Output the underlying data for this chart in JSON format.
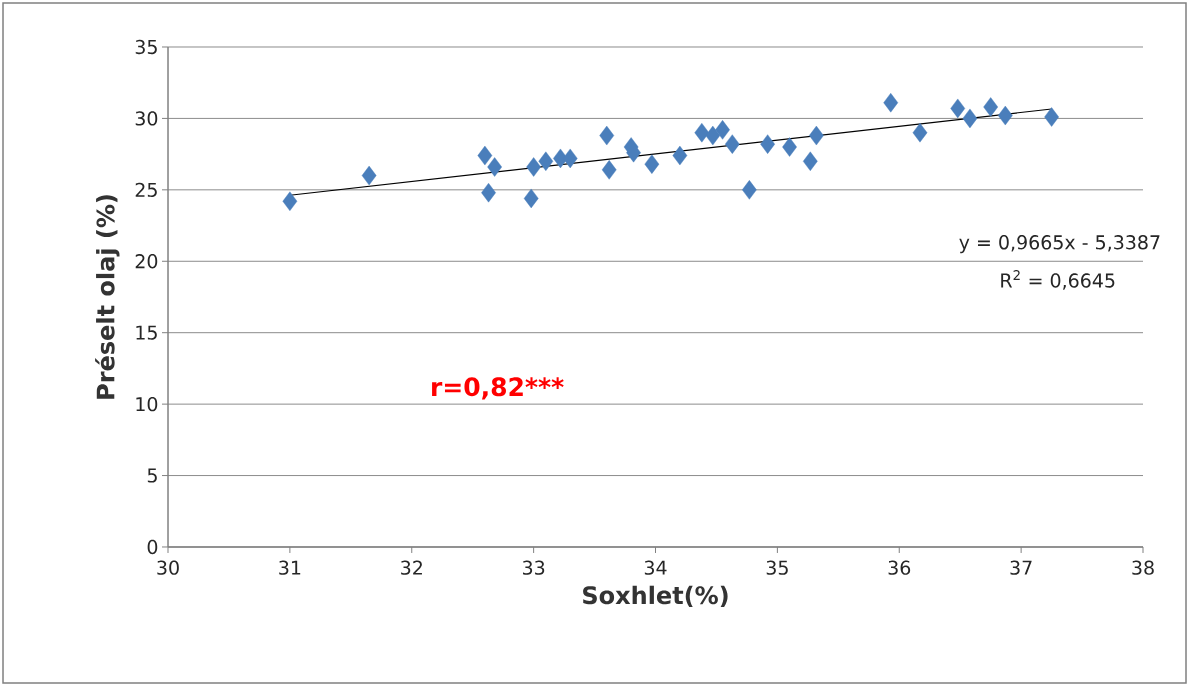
{
  "chart_data": {
    "type": "scatter",
    "xlabel": "Soxhlet(%)",
    "ylabel": "Préselt olaj (%)",
    "xlim": [
      30,
      38
    ],
    "xticks": [
      30,
      31,
      32,
      33,
      34,
      35,
      36,
      37,
      38
    ],
    "ylim": [
      0,
      35
    ],
    "yticks": [
      0,
      5,
      10,
      15,
      20,
      25,
      30,
      35
    ],
    "grid": "y",
    "series": [
      {
        "color": "#4a7ebb",
        "marker": "diamond",
        "x": [
          31.0,
          31.65,
          32.6,
          32.63,
          32.68,
          32.98,
          33.0,
          33.1,
          33.22,
          33.3,
          33.6,
          33.62,
          33.8,
          33.82,
          33.97,
          34.2,
          34.38,
          34.47,
          34.55,
          34.63,
          34.77,
          34.92,
          35.1,
          35.27,
          35.32,
          35.93,
          36.17,
          36.48,
          36.58,
          36.75,
          36.87,
          37.25
        ],
        "values": [
          24.2,
          26.0,
          27.4,
          24.8,
          26.6,
          24.4,
          26.6,
          27.0,
          27.2,
          27.2,
          28.8,
          26.4,
          28.0,
          27.6,
          26.8,
          27.4,
          29.0,
          28.8,
          29.2,
          28.2,
          25.0,
          28.2,
          28.0,
          27.0,
          28.8,
          31.1,
          29.0,
          30.7,
          30.0,
          30.8,
          30.2,
          30.1
        ]
      },
      {
        "type": "line",
        "color": "#000000",
        "marker": "none",
        "line_style": "solid",
        "x": [
          31.0,
          37.25
        ],
        "values": [
          24.62,
          30.66
        ]
      }
    ],
    "annotations": [
      {
        "text": "y = 0,9665x - 5,3387"
      },
      {
        "text": "R$^{2}$ = 0,6645"
      },
      {
        "text": "r=0,82***"
      }
    ]
  }
}
